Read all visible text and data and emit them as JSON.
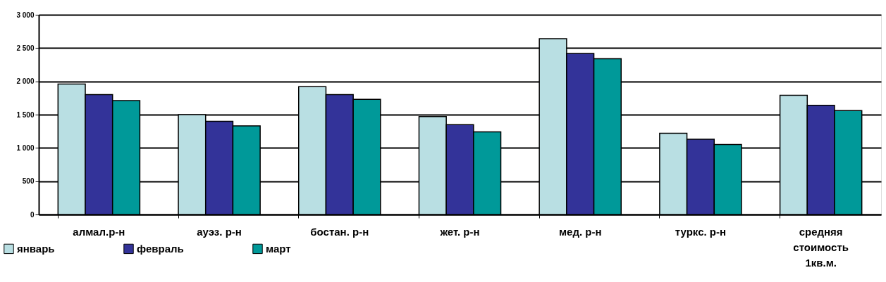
{
  "chart_data": {
    "type": "bar",
    "categories": [
      "алмал.р-н",
      "ауэз. р-н",
      "бостан. р-н",
      "жет. р-н",
      "мед. р-н",
      "туркс. р-н",
      "средняя\nстоимость\n1кв.м."
    ],
    "series": [
      {
        "name": "январь",
        "color": "#b9dfe3",
        "values": [
          1960,
          1500,
          1920,
          1470,
          2640,
          1220,
          1790
        ]
      },
      {
        "name": "февраль",
        "color": "#333399",
        "values": [
          1800,
          1400,
          1800,
          1350,
          2420,
          1130,
          1640
        ]
      },
      {
        "name": "март",
        "color": "#009999",
        "values": [
          1710,
          1330,
          1730,
          1240,
          2340,
          1050,
          1560
        ]
      }
    ],
    "ylim": [
      0,
      3000
    ],
    "yticks": [
      {
        "value": 0,
        "label": "0"
      },
      {
        "value": 500,
        "label": "500"
      },
      {
        "value": 1000,
        "label": "1 000"
      },
      {
        "value": 1500,
        "label": "1 500"
      },
      {
        "value": 2000,
        "label": "2 000"
      },
      {
        "value": 2500,
        "label": "2 500"
      },
      {
        "value": 3000,
        "label": "3 000"
      }
    ],
    "grid": "y",
    "legend": "bottom left"
  }
}
